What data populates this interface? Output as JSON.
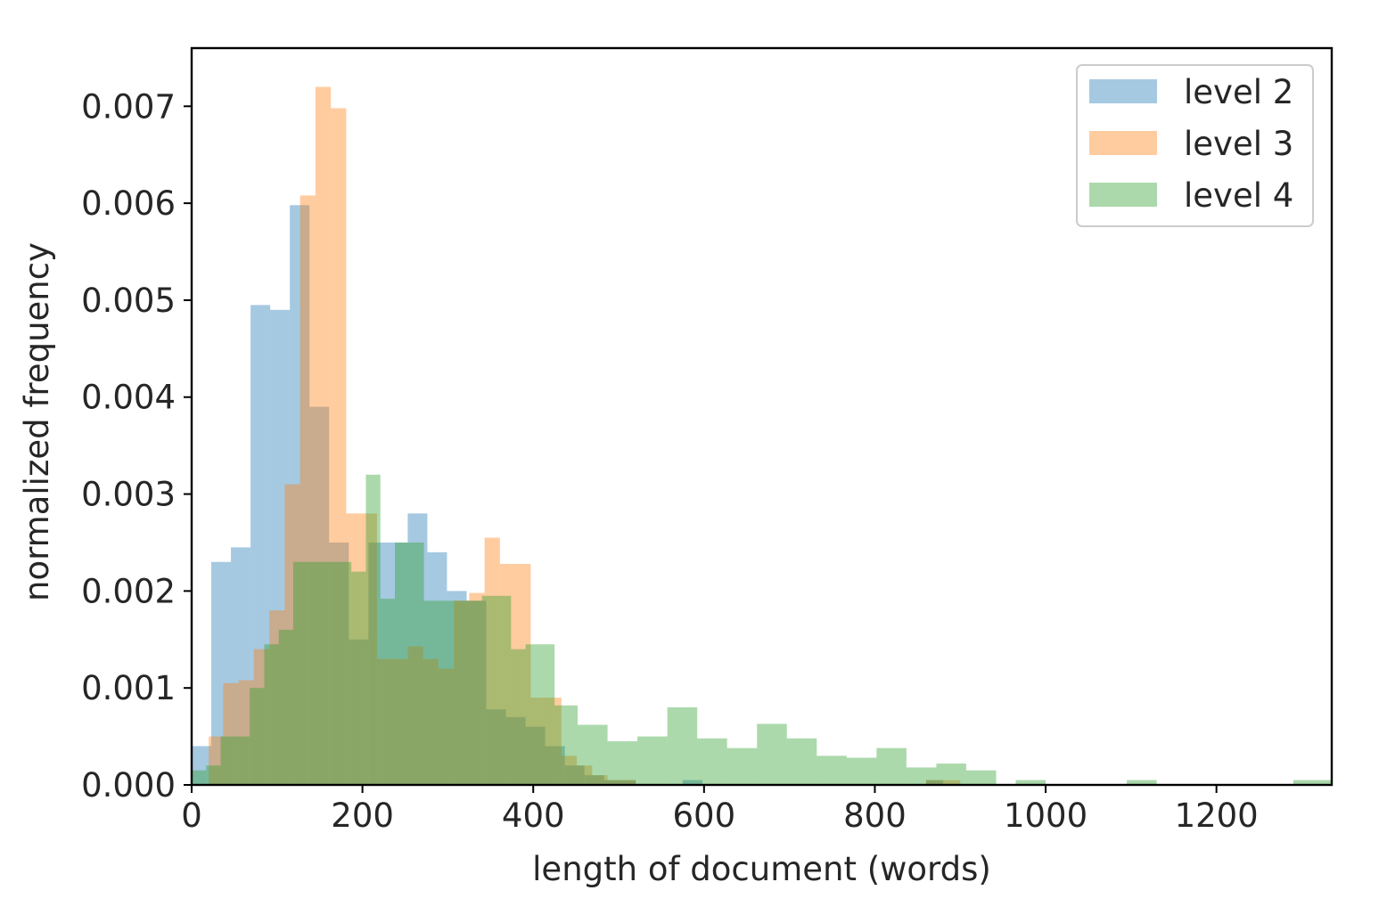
{
  "chart_data": {
    "type": "bar",
    "subtype": "overlaid-histogram",
    "title": "",
    "xlabel": "length of document (words)",
    "ylabel": "normalized frequency",
    "xlim": [
      0,
      1335
    ],
    "ylim": [
      0,
      0.0076
    ],
    "xticks": [
      0,
      200,
      400,
      600,
      800,
      1000,
      1200
    ],
    "xtick_labels": [
      "0",
      "200",
      "400",
      "600",
      "800",
      "1000",
      "1200"
    ],
    "yticks": [
      0.0,
      0.001,
      0.002,
      0.003,
      0.004,
      0.005,
      0.006,
      0.007
    ],
    "ytick_labels": [
      "0.000",
      "0.001",
      "0.002",
      "0.003",
      "0.004",
      "0.005",
      "0.006",
      "0.007"
    ],
    "grid": false,
    "legend_position": "top-right",
    "series": [
      {
        "name": "level 2",
        "color": "#1f77b4",
        "bins": [
          [
            0,
            23,
            0.0004
          ],
          [
            23,
            46,
            0.0023
          ],
          [
            46,
            69,
            0.00245
          ],
          [
            69,
            92,
            0.00495
          ],
          [
            92,
            115,
            0.0049
          ],
          [
            115,
            138,
            0.00598
          ],
          [
            138,
            161,
            0.0039
          ],
          [
            161,
            184,
            0.0025
          ],
          [
            184,
            207,
            0.0015
          ],
          [
            207,
            230,
            0.0025
          ],
          [
            230,
            253,
            0.0025
          ],
          [
            253,
            276,
            0.0028
          ],
          [
            276,
            299,
            0.0024
          ],
          [
            299,
            322,
            0.002
          ],
          [
            322,
            345,
            0.0019
          ],
          [
            345,
            368,
            0.00078
          ],
          [
            368,
            391,
            0.0007
          ],
          [
            391,
            414,
            0.0006
          ],
          [
            414,
            437,
            0.0004
          ],
          [
            437,
            460,
            0.0002
          ],
          [
            460,
            483,
            0.0001
          ],
          [
            483,
            520,
            5e-05
          ],
          [
            575,
            598,
            5e-05
          ],
          [
            860,
            880,
            5e-05
          ]
        ]
      },
      {
        "name": "level 3",
        "color": "#ff7f0e",
        "bins": [
          [
            20,
            37,
            0.0005
          ],
          [
            37,
            55,
            0.00105
          ],
          [
            55,
            73,
            0.00108
          ],
          [
            73,
            91,
            0.0014
          ],
          [
            91,
            109,
            0.0018
          ],
          [
            109,
            127,
            0.0031
          ],
          [
            127,
            145,
            0.00608
          ],
          [
            145,
            163,
            0.0072
          ],
          [
            163,
            181,
            0.00698
          ],
          [
            181,
            199,
            0.0028
          ],
          [
            199,
            217,
            0.0028
          ],
          [
            217,
            235,
            0.0013
          ],
          [
            235,
            253,
            0.0013
          ],
          [
            253,
            271,
            0.00143
          ],
          [
            271,
            289,
            0.0013
          ],
          [
            289,
            307,
            0.0012
          ],
          [
            307,
            325,
            0.0019
          ],
          [
            325,
            343,
            0.00198
          ],
          [
            343,
            361,
            0.00255
          ],
          [
            361,
            379,
            0.00228
          ],
          [
            379,
            397,
            0.00228
          ],
          [
            397,
            415,
            0.0009
          ],
          [
            415,
            433,
            0.0009
          ],
          [
            433,
            451,
            0.0003
          ],
          [
            451,
            469,
            0.0002
          ],
          [
            469,
            487,
            0.0001
          ],
          [
            487,
            520,
            5e-05
          ],
          [
            860,
            900,
            5e-05
          ]
        ]
      },
      {
        "name": "level 4",
        "color": "#2ca02c",
        "bins": [
          [
            0,
            17,
            0.00015
          ],
          [
            17,
            34,
            0.0002
          ],
          [
            34,
            51,
            0.0005
          ],
          [
            51,
            68,
            0.0005
          ],
          [
            68,
            85,
            0.001
          ],
          [
            85,
            102,
            0.00145
          ],
          [
            102,
            119,
            0.0016
          ],
          [
            119,
            136,
            0.0023
          ],
          [
            136,
            153,
            0.0023
          ],
          [
            153,
            170,
            0.0023
          ],
          [
            170,
            187,
            0.0023
          ],
          [
            187,
            204,
            0.0022
          ],
          [
            204,
            221,
            0.0032
          ],
          [
            221,
            238,
            0.00192
          ],
          [
            238,
            255,
            0.0025
          ],
          [
            255,
            272,
            0.0025
          ],
          [
            272,
            289,
            0.0019
          ],
          [
            289,
            306,
            0.0019
          ],
          [
            306,
            323,
            0.0019
          ],
          [
            323,
            340,
            0.0019
          ],
          [
            340,
            357,
            0.00195
          ],
          [
            357,
            374,
            0.00195
          ],
          [
            374,
            391,
            0.0014
          ],
          [
            391,
            408,
            0.00145
          ],
          [
            408,
            425,
            0.00145
          ],
          [
            425,
            452,
            0.00082
          ],
          [
            452,
            487,
            0.00062
          ],
          [
            487,
            522,
            0.00045
          ],
          [
            522,
            557,
            0.0005
          ],
          [
            557,
            592,
            0.0008
          ],
          [
            592,
            627,
            0.00048
          ],
          [
            627,
            662,
            0.00038
          ],
          [
            662,
            697,
            0.00063
          ],
          [
            697,
            732,
            0.00048
          ],
          [
            732,
            767,
            0.0003
          ],
          [
            767,
            802,
            0.00028
          ],
          [
            802,
            837,
            0.00038
          ],
          [
            837,
            872,
            0.00018
          ],
          [
            872,
            907,
            0.00022
          ],
          [
            907,
            942,
            0.00015
          ],
          [
            965,
            1000,
            5e-05
          ],
          [
            1095,
            1130,
            5e-05
          ],
          [
            1290,
            1335,
            5e-05
          ]
        ]
      }
    ]
  }
}
